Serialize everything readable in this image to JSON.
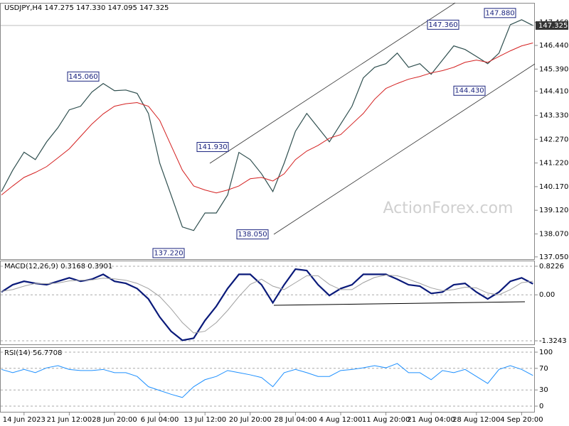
{
  "chart_data": [
    {
      "type": "line",
      "title": "USDJPY,H4  147.275 147.330 147.095 147.325",
      "watermark": "ActionForex.com",
      "ylim": [
        136.95,
        148.3
      ],
      "yticks": [
        {
          "value": 147.46,
          "label": "147.460"
        },
        {
          "value": 146.44,
          "label": "146.440"
        },
        {
          "value": 145.39,
          "label": "145.390"
        },
        {
          "value": 144.41,
          "label": "144.410"
        },
        {
          "value": 143.33,
          "label": "143.330"
        },
        {
          "value": 142.27,
          "label": "142.270"
        },
        {
          "value": 141.22,
          "label": "141.220"
        },
        {
          "value": 140.17,
          "label": "140.170"
        },
        {
          "value": 139.12,
          "label": "139.120"
        },
        {
          "value": 138.07,
          "label": "138.070"
        },
        {
          "value": 137.05,
          "label": "137.050"
        }
      ],
      "last_price": 147.325,
      "annotations": [
        {
          "value": 145.06,
          "label": "145.060"
        },
        {
          "value": 137.22,
          "label": "137.220"
        },
        {
          "value": 141.93,
          "label": "141.930"
        },
        {
          "value": 138.05,
          "label": "138.050"
        },
        {
          "value": 147.36,
          "label": "147.360"
        },
        {
          "value": 144.43,
          "label": "144.430"
        },
        {
          "value": 147.88,
          "label": "147.880"
        }
      ],
      "series": [
        {
          "name": "USDJPY",
          "color": "#2f4f4f",
          "values": [
            139.95,
            140.9,
            141.7,
            141.37,
            142.16,
            142.79,
            143.58,
            143.74,
            144.37,
            144.75,
            144.43,
            144.46,
            144.31,
            143.42,
            141.21,
            139.8,
            138.38,
            138.22,
            139.0,
            139.0,
            139.8,
            141.69,
            141.37,
            140.74,
            139.95,
            141.21,
            142.63,
            143.42,
            142.79,
            142.16,
            142.95,
            143.74,
            145.0,
            145.47,
            145.63,
            146.1,
            145.47,
            145.63,
            145.16,
            145.79,
            146.42,
            146.26,
            145.95,
            145.63,
            146.1,
            147.36,
            147.58,
            147.325
          ]
        },
        {
          "name": "MA",
          "color": "#d42020",
          "values": [
            139.8,
            140.2,
            140.58,
            140.8,
            141.06,
            141.45,
            141.85,
            142.4,
            142.95,
            143.4,
            143.74,
            143.85,
            143.9,
            143.74,
            143.11,
            142.0,
            140.9,
            140.2,
            140.02,
            139.89,
            140.02,
            140.2,
            140.52,
            140.58,
            140.42,
            140.74,
            141.37,
            141.75,
            142.0,
            142.32,
            142.48,
            142.95,
            143.42,
            144.05,
            144.53,
            144.75,
            144.94,
            145.06,
            145.22,
            145.32,
            145.47,
            145.69,
            145.79,
            145.69,
            145.95,
            146.2,
            146.42,
            146.55
          ]
        }
      ]
    },
    {
      "type": "line",
      "title": "MACD(12,26,9) 0.3168 0.3901",
      "ylim": [
        -1.447,
        0.966
      ],
      "yticks": [
        0.8226,
        {
          "value": 0,
          "label": "0.00"
        },
        -1.3243
      ],
      "series": [
        {
          "name": "MACD",
          "color": "#0a1a7a",
          "values": [
            0.08,
            0.29,
            0.39,
            0.33,
            0.29,
            0.39,
            0.49,
            0.39,
            0.45,
            0.59,
            0.39,
            0.33,
            0.18,
            -0.12,
            -0.64,
            -1.05,
            -1.31,
            -1.25,
            -0.74,
            -0.33,
            0.18,
            0.59,
            0.59,
            0.29,
            -0.23,
            0.29,
            0.74,
            0.7,
            0.29,
            -0.02,
            0.18,
            0.29,
            0.59,
            0.59,
            0.59,
            0.45,
            0.29,
            0.25,
            0.04,
            0.08,
            0.29,
            0.33,
            0.08,
            -0.12,
            0.08,
            0.39,
            0.49,
            0.3168
          ]
        },
        {
          "name": "Signal",
          "color": "#a0a0a0",
          "values": [
            0.1,
            0.15,
            0.25,
            0.33,
            0.32,
            0.34,
            0.4,
            0.42,
            0.43,
            0.48,
            0.46,
            0.42,
            0.33,
            0.18,
            -0.05,
            -0.4,
            -0.8,
            -1.1,
            -1.05,
            -0.8,
            -0.45,
            -0.05,
            0.3,
            0.45,
            0.25,
            0.15,
            0.35,
            0.55,
            0.55,
            0.3,
            0.15,
            0.15,
            0.35,
            0.5,
            0.57,
            0.55,
            0.45,
            0.33,
            0.2,
            0.12,
            0.15,
            0.22,
            0.2,
            0.05,
            0.0,
            0.15,
            0.35,
            0.3901
          ]
        }
      ]
    },
    {
      "type": "line",
      "title": "RSI(14) 56.7708",
      "ylim": [
        -10.5,
        107.9
      ],
      "yticks": [
        100,
        70,
        30,
        0
      ],
      "categories": [
        null,
        null,
        "14 Jun 2023",
        null,
        null,
        null,
        "21 Jun 12:00",
        null,
        null,
        null,
        "28 Jun 20:00",
        null,
        null,
        null,
        "6 Jul 04:00",
        null,
        null,
        null,
        "13 Jul 12:00",
        null,
        null,
        null,
        "20 Jul 20:00",
        null,
        null,
        null,
        "28 Jul 04:00",
        null,
        null,
        null,
        "4 Aug 12:00",
        null,
        null,
        null,
        "11 Aug 20:00",
        null,
        null,
        null,
        "21 Aug 04:00",
        null,
        null,
        null,
        "28 Aug 12:00",
        null,
        null,
        null,
        "4 Sep 20:00",
        null
      ],
      "series": [
        {
          "name": "RSI",
          "color": "#1e90ff",
          "values": [
            68,
            62,
            68,
            62,
            71,
            75,
            68,
            66,
            66,
            68,
            62,
            62,
            55,
            36,
            29,
            22,
            16,
            36,
            49,
            55,
            66,
            62,
            58,
            53,
            36,
            62,
            68,
            62,
            55,
            55,
            66,
            68,
            71,
            75,
            71,
            79,
            62,
            62,
            49,
            66,
            62,
            68,
            55,
            42,
            68,
            75,
            68,
            56.7708
          ]
        }
      ]
    }
  ]
}
